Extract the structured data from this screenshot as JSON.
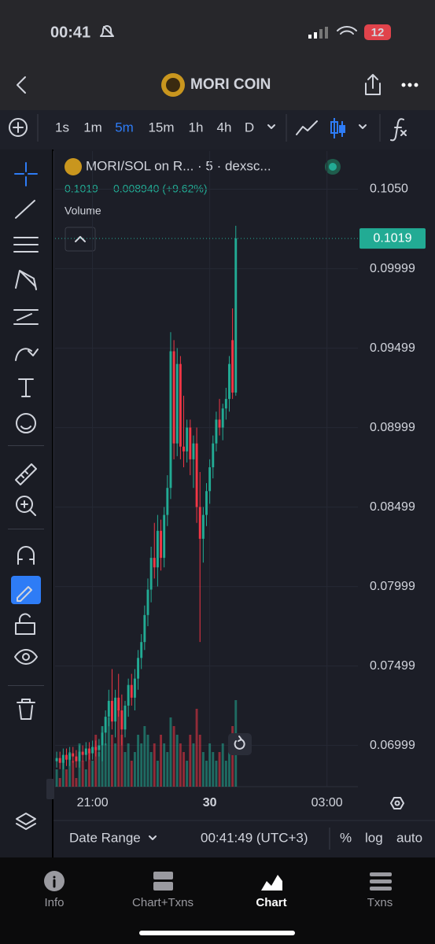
{
  "status_bar": {
    "time": "00:41",
    "battery": "12"
  },
  "header": {
    "title": "MORI COIN"
  },
  "toolbar": {
    "intervals": [
      "1s",
      "1m",
      "5m",
      "15m",
      "1h",
      "4h",
      "D"
    ]
  },
  "chart_data": {
    "type": "candlestick",
    "title": "MORI/SOL on R... · 5 · dexsc...",
    "change": "0.008940 (+9.62%)",
    "volume_label": "Volume",
    "price_line": 0.1019,
    "up_color": "#22ab94",
    "down_color": "#f23645",
    "x": [
      0,
      1,
      2,
      3,
      4,
      5,
      6,
      7,
      8,
      9,
      10,
      11,
      12,
      13,
      14,
      15,
      16,
      17,
      18,
      19,
      20,
      21,
      22,
      23,
      24,
      25,
      26,
      27,
      28,
      29,
      30,
      31,
      32,
      33,
      34,
      35,
      36,
      37,
      38,
      39,
      40,
      41,
      42,
      43,
      44,
      45,
      46,
      47,
      48,
      49,
      50,
      51,
      52,
      53,
      54,
      55
    ],
    "open": [
      0.069,
      0.0692,
      0.0689,
      0.0694,
      0.0691,
      0.0695,
      0.0693,
      0.069,
      0.0696,
      0.0694,
      0.0698,
      0.0695,
      0.0699,
      0.0697,
      0.07,
      0.0708,
      0.0718,
      0.0728,
      0.0715,
      0.073,
      0.0722,
      0.071,
      0.0725,
      0.0738,
      0.073,
      0.0742,
      0.0755,
      0.0765,
      0.0782,
      0.0798,
      0.0818,
      0.0812,
      0.0835,
      0.0818,
      0.0845,
      0.0862,
      0.0948,
      0.089,
      0.094,
      0.0888,
      0.0885,
      0.09,
      0.088,
      0.089,
      0.085,
      0.083,
      0.0845,
      0.086,
      0.0875,
      0.089,
      0.0905,
      0.09,
      0.0912,
      0.0918,
      0.0955,
      0.0922
    ],
    "high": [
      0.0696,
      0.0696,
      0.0698,
      0.0698,
      0.0699,
      0.0699,
      0.0697,
      0.07,
      0.07,
      0.0702,
      0.0702,
      0.0703,
      0.0703,
      0.0704,
      0.0712,
      0.0722,
      0.0735,
      0.0748,
      0.0735,
      0.0745,
      0.0732,
      0.0728,
      0.0742,
      0.0745,
      0.0748,
      0.076,
      0.077,
      0.0788,
      0.0805,
      0.0825,
      0.084,
      0.0845,
      0.0842,
      0.085,
      0.087,
      0.096,
      0.0955,
      0.095,
      0.0945,
      0.092,
      0.0905,
      0.0905,
      0.0895,
      0.09,
      0.0872,
      0.085,
      0.0865,
      0.088,
      0.0895,
      0.091,
      0.0918,
      0.0915,
      0.0925,
      0.0945,
      0.0975,
      0.1027
    ],
    "low": [
      0.0686,
      0.0685,
      0.0685,
      0.0687,
      0.0687,
      0.0689,
      0.0686,
      0.0686,
      0.069,
      0.069,
      0.0691,
      0.0691,
      0.0693,
      0.0693,
      0.069,
      0.07,
      0.0712,
      0.071,
      0.0705,
      0.0718,
      0.07,
      0.0705,
      0.0718,
      0.0725,
      0.0722,
      0.0735,
      0.0748,
      0.076,
      0.0775,
      0.079,
      0.0805,
      0.08,
      0.081,
      0.0812,
      0.0838,
      0.0855,
      0.088,
      0.0882,
      0.088,
      0.0875,
      0.0878,
      0.087,
      0.0862,
      0.084,
      0.0765,
      0.0815,
      0.0838,
      0.0852,
      0.0868,
      0.0885,
      0.0895,
      0.0892,
      0.0905,
      0.091,
      0.0918,
      0.092
    ],
    "close": [
      0.0692,
      0.0689,
      0.0694,
      0.0691,
      0.0695,
      0.0693,
      0.069,
      0.0696,
      0.0694,
      0.0698,
      0.0695,
      0.0699,
      0.0697,
      0.07,
      0.0708,
      0.0718,
      0.0728,
      0.0715,
      0.073,
      0.0722,
      0.071,
      0.0725,
      0.0738,
      0.073,
      0.0742,
      0.0755,
      0.0765,
      0.0782,
      0.0798,
      0.0818,
      0.0812,
      0.0835,
      0.0818,
      0.0845,
      0.0862,
      0.0948,
      0.089,
      0.094,
      0.0888,
      0.0885,
      0.09,
      0.088,
      0.089,
      0.085,
      0.083,
      0.0845,
      0.086,
      0.0875,
      0.089,
      0.0905,
      0.09,
      0.0912,
      0.0918,
      0.094,
      0.0922,
      0.1019
    ],
    "volume": [
      2,
      1,
      3,
      2,
      4,
      3,
      1,
      5,
      3,
      2,
      4,
      3,
      6,
      4,
      7,
      5,
      8,
      6,
      5,
      9,
      6,
      4,
      5,
      3,
      4,
      6,
      5,
      7,
      6,
      4,
      5,
      3,
      6,
      5,
      4,
      8,
      7,
      6,
      5,
      4,
      3,
      6,
      5,
      9,
      6,
      4,
      3,
      5,
      4,
      3,
      4,
      5,
      3,
      4,
      7,
      10
    ],
    "xlim": [
      -0.5,
      92.5
    ],
    "xticks": [
      {
        "value": 11,
        "label": "21:00"
      },
      {
        "value": 47,
        "label": "30"
      },
      {
        "value": 83,
        "label": "03:00"
      }
    ],
    "ylim": [
      0.0674,
      0.1074
    ],
    "yticks": [
      {
        "value": 0.105,
        "label": "0.1050"
      },
      0.09999,
      0.09499,
      0.08999,
      0.08499,
      0.07999,
      0.07499,
      0.06999
    ],
    "grid": true
  },
  "bottom_bar": {
    "date_range": "Date Range",
    "clock": "00:41:49 (UTC+3)",
    "percent": "%",
    "log": "log",
    "auto": "auto"
  },
  "tabs": [
    "Info",
    "Chart+Txns",
    "Chart",
    "Txns"
  ]
}
